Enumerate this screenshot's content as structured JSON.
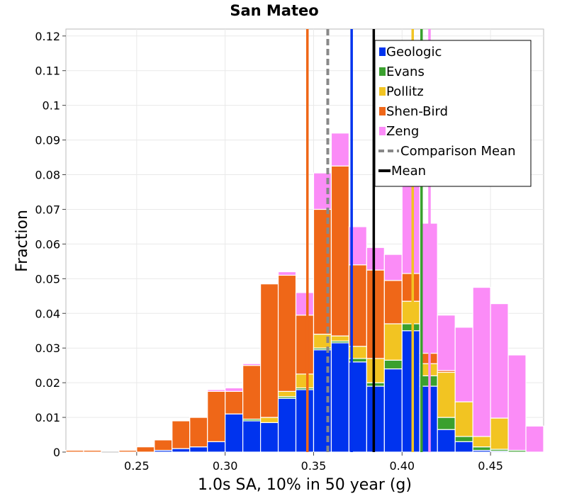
{
  "chart_data": {
    "type": "bar",
    "stacked": true,
    "title": "San Mateo",
    "xlabel": "1.0s SA, 10% in 50 year (g)",
    "ylabel": "Fraction",
    "xlim": [
      0.21,
      0.48
    ],
    "ylim": [
      0,
      0.122
    ],
    "bin_width": 0.01,
    "xticks": [
      {
        "value": 0.25,
        "label": "0.25"
      },
      {
        "value": 0.3,
        "label": "0.30"
      },
      {
        "value": 0.35,
        "label": "0.35"
      },
      {
        "value": 0.4,
        "label": "0.40"
      },
      {
        "value": 0.45,
        "label": "0.45"
      }
    ],
    "yticks": [
      {
        "value": 0,
        "label": "0"
      },
      {
        "value": 0.01,
        "label": "0.01"
      },
      {
        "value": 0.02,
        "label": "0.02"
      },
      {
        "value": 0.03,
        "label": "0.03"
      },
      {
        "value": 0.04,
        "label": "0.04"
      },
      {
        "value": 0.05,
        "label": "0.05"
      },
      {
        "value": 0.06,
        "label": "0.06"
      },
      {
        "value": 0.07,
        "label": "0.07"
      },
      {
        "value": 0.08,
        "label": "0.08"
      },
      {
        "value": 0.09,
        "label": "0.09"
      },
      {
        "value": 0.1,
        "label": "0.1"
      },
      {
        "value": 0.11,
        "label": "0.11"
      },
      {
        "value": 0.12,
        "label": "0.12"
      }
    ],
    "grid": true,
    "legend_position": "top-right",
    "bin_starts": [
      0.21,
      0.22,
      0.23,
      0.24,
      0.25,
      0.26,
      0.27,
      0.28,
      0.29,
      0.3,
      0.31,
      0.32,
      0.33,
      0.34,
      0.35,
      0.36,
      0.37,
      0.38,
      0.39,
      0.4,
      0.41,
      0.42,
      0.43,
      0.44,
      0.45,
      0.46,
      0.47
    ],
    "series": [
      {
        "name": "Geologic",
        "color": "#0033ee",
        "values": [
          0,
          0,
          0,
          0,
          0,
          0.0005,
          0.001,
          0.0015,
          0.003,
          0.011,
          0.009,
          0.0085,
          0.0155,
          0.018,
          0.0295,
          0.0315,
          0.026,
          0.019,
          0.024,
          0.035,
          0.019,
          0.0065,
          0.003,
          0.0005,
          0.0003,
          0,
          0
        ]
      },
      {
        "name": "Evans",
        "color": "#3aa02e",
        "values": [
          0,
          0,
          0,
          0,
          0,
          0,
          0,
          0,
          0,
          0,
          0.0005,
          0,
          0.0005,
          0.0005,
          0.0005,
          0.0005,
          0.001,
          0.001,
          0.0025,
          0.002,
          0.003,
          0.0035,
          0.0015,
          0.001,
          0.0005,
          0.0005,
          0
        ]
      },
      {
        "name": "Pollitz",
        "color": "#f2c422",
        "values": [
          0,
          0,
          0,
          0,
          0,
          0,
          0,
          0,
          0,
          0,
          0,
          0.0015,
          0.0015,
          0.004,
          0.004,
          0.0015,
          0.0035,
          0.007,
          0.0105,
          0.0065,
          0.0035,
          0.013,
          0.01,
          0.003,
          0.009,
          0,
          0
        ]
      },
      {
        "name": "Shen-Bird",
        "color": "#ef6718",
        "values": [
          0.0005,
          0.0005,
          0,
          0.0005,
          0.0015,
          0.003,
          0.008,
          0.0085,
          0.0145,
          0.0065,
          0.0155,
          0.0385,
          0.0335,
          0.017,
          0.036,
          0.049,
          0.0235,
          0.0255,
          0.0125,
          0.008,
          0.003,
          0.0005,
          0,
          0,
          0,
          0,
          0
        ]
      },
      {
        "name": "Zeng",
        "color": "#fb8cf7",
        "values": [
          0,
          0,
          0,
          0,
          0,
          0,
          0,
          0,
          0.0005,
          0.001,
          0.0005,
          0,
          0.001,
          0.0065,
          0.0105,
          0.0095,
          0.011,
          0.0065,
          0.0075,
          0.039,
          0.0375,
          0.016,
          0.0215,
          0.043,
          0.033,
          0.0275,
          0.0075
        ]
      }
    ],
    "vlines": [
      {
        "name": "Shen-Bird",
        "x": 0.3465,
        "color": "#ef6718",
        "style": "solid"
      },
      {
        "name": "Comparison Mean",
        "x": 0.358,
        "color": "#888888",
        "style": "dashed"
      },
      {
        "name": "Geologic",
        "x": 0.3715,
        "color": "#0033ee",
        "style": "solid"
      },
      {
        "name": "Mean",
        "x": 0.384,
        "color": "#000000",
        "style": "solid"
      },
      {
        "name": "Pollitz",
        "x": 0.406,
        "color": "#f2c422",
        "style": "solid"
      },
      {
        "name": "Evans",
        "x": 0.411,
        "color": "#3aa02e",
        "style": "solid"
      },
      {
        "name": "Zeng",
        "x": 0.4155,
        "color": "#fb8cf7",
        "style": "solid"
      }
    ],
    "legend": [
      {
        "label": "Geologic",
        "kind": "patch",
        "color": "#0033ee"
      },
      {
        "label": "Evans",
        "kind": "patch",
        "color": "#3aa02e"
      },
      {
        "label": "Pollitz",
        "kind": "patch",
        "color": "#f2c422"
      },
      {
        "label": "Shen-Bird",
        "kind": "patch",
        "color": "#ef6718"
      },
      {
        "label": "Zeng",
        "kind": "patch",
        "color": "#fb8cf7"
      },
      {
        "label": "Comparison Mean",
        "kind": "dashed",
        "color": "#888888"
      },
      {
        "label": "Mean",
        "kind": "line",
        "color": "#000000"
      }
    ]
  }
}
